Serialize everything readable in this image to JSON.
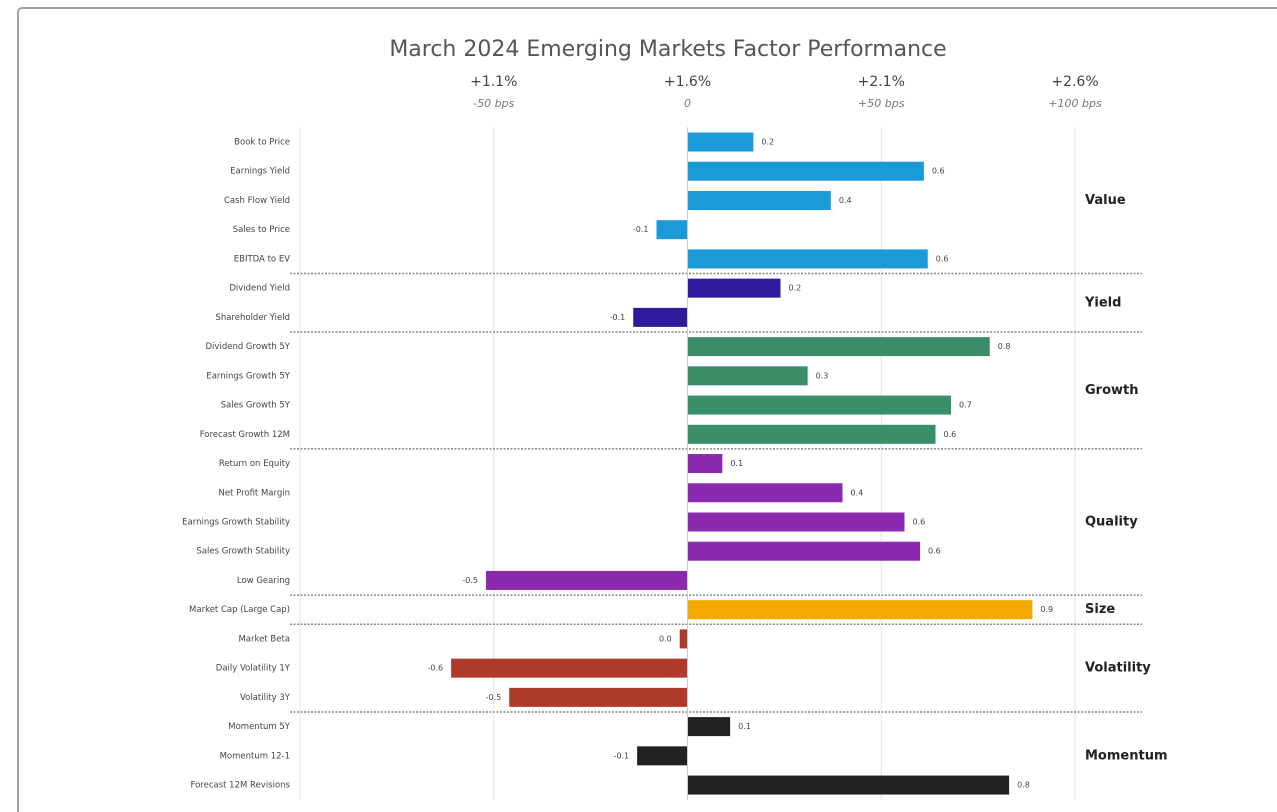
{
  "chart_data": {
    "type": "bar",
    "orientation": "horizontal",
    "title": "March 2024 Emerging Markets Factor Performance",
    "xlim": [
      -1.0,
      1.0
    ],
    "xticks": [
      {
        "value": -0.5,
        "label": "+1.1%"
      },
      {
        "value": 0,
        "label": "+1.6%"
      },
      {
        "value": 0.5,
        "label": "+2.1%"
      },
      {
        "value": 1.0,
        "label": "+2.6%"
      }
    ],
    "xticks_secondary": [
      {
        "value": -0.5,
        "label": "-50 bps"
      },
      0,
      {
        "value": 0.5,
        "label": "+50 bps"
      },
      {
        "value": 1.0,
        "label": "+100 bps"
      }
    ],
    "grid": true,
    "groups": [
      {
        "name": "Value",
        "color": "#1a9ad6",
        "categories": [
          "Book to Price",
          "Earnings Yield",
          "Cash Flow Yield",
          "Sales to Price",
          "EBITDA to EV"
        ],
        "values": [
          0.17,
          0.61,
          0.37,
          -0.08,
          0.62
        ],
        "value_labels": [
          "0.2",
          "0.6",
          "0.4",
          "-0.1",
          "0.6"
        ]
      },
      {
        "name": "Yield",
        "color": "#2e1a9a",
        "categories": [
          "Dividend Yield",
          "Shareholder Yield"
        ],
        "values": [
          0.24,
          -0.14
        ],
        "value_labels": [
          "0.2",
          "-0.1"
        ]
      },
      {
        "name": "Growth",
        "color": "#3a8f6a",
        "categories": [
          "Dividend Growth 5Y",
          "Earnings Growth 5Y",
          "Sales Growth 5Y",
          "Forecast Growth 12M"
        ],
        "values": [
          0.78,
          0.31,
          0.68,
          0.64
        ],
        "value_labels": [
          "0.8",
          "0.3",
          "0.7",
          "0.6"
        ]
      },
      {
        "name": "Quality",
        "color": "#8a2aae",
        "categories": [
          "Return on Equity",
          "Net Profit Margin",
          "Earnings Growth Stability",
          "Sales Growth Stability",
          "Low Gearing"
        ],
        "values": [
          0.09,
          0.4,
          0.56,
          0.6,
          -0.52
        ],
        "value_labels": [
          "0.1",
          "0.4",
          "0.6",
          "0.6",
          "-0.5"
        ]
      },
      {
        "name": "Size",
        "color": "#f5a800",
        "categories": [
          "Market Cap (Large Cap)"
        ],
        "values": [
          0.89
        ],
        "value_labels": [
          "0.9"
        ]
      },
      {
        "name": "Volatility",
        "color": "#b03a2a",
        "categories": [
          "Market Beta",
          "Daily Volatility 1Y",
          "Volatility 3Y"
        ],
        "values": [
          -0.02,
          -0.61,
          -0.46
        ],
        "value_labels": [
          "0.0",
          "-0.6",
          "-0.5"
        ]
      },
      {
        "name": "Momentum",
        "color": "#222222",
        "categories": [
          "Momentum 5Y",
          "Momentum 12-1",
          "Forecast 12M Revisions"
        ],
        "values": [
          0.11,
          -0.13,
          0.83
        ],
        "value_labels": [
          "0.1",
          "-0.1",
          "0.8"
        ]
      }
    ]
  }
}
